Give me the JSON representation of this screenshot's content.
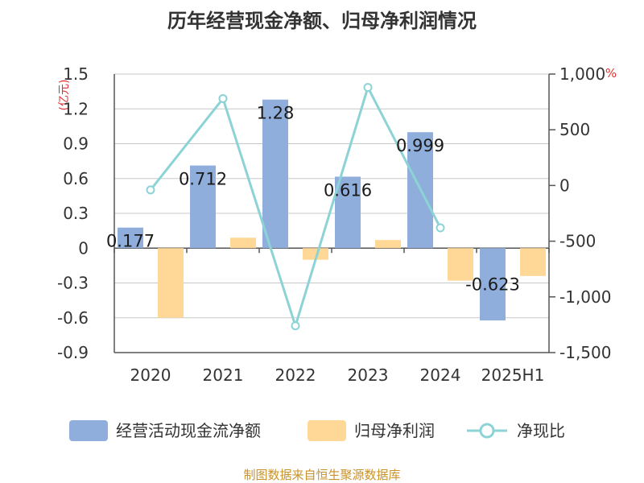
{
  "chart_data": {
    "type": "bar",
    "title": "历年经营现金净额、归母净利润情况",
    "categories": [
      "2020",
      "2021",
      "2022",
      "2023",
      "2024",
      "2025H1"
    ],
    "y_left": {
      "unit_label": "(亿元)",
      "ylim": [
        -0.9,
        1.5
      ],
      "ticks": [
        -0.9,
        -0.6,
        -0.3,
        0,
        0.3,
        0.6,
        0.9,
        1.2,
        1.5
      ],
      "tick_labels": [
        "-0.9",
        "-0.6",
        "-0.3",
        "0",
        "0.3",
        "0.6",
        "0.9",
        "1.2",
        "1.5"
      ]
    },
    "y_right": {
      "unit_label": "%",
      "ylim": [
        -1500,
        1000
      ],
      "ticks": [
        -1500,
        -1000,
        -500,
        0,
        500,
        1000
      ],
      "tick_labels": [
        "-1,500",
        "-1,000",
        "-500",
        "0",
        "500",
        "1,000"
      ]
    },
    "series": [
      {
        "name": "经营活动现金流净额",
        "type": "bar",
        "axis": "left",
        "color": "#8FAEDC",
        "values": [
          0.177,
          0.712,
          1.28,
          0.616,
          0.999,
          -0.623
        ],
        "labels": [
          "0.177",
          "0.712",
          "1.28",
          "0.616",
          "0.999",
          "-0.623"
        ]
      },
      {
        "name": "归母净利润",
        "type": "bar",
        "axis": "left",
        "color": "#FFD796",
        "values": [
          -0.6,
          0.09,
          -0.1,
          0.07,
          -0.28,
          -0.24
        ]
      },
      {
        "name": "净现比",
        "type": "line",
        "axis": "right",
        "color": "#8DD3D6",
        "values": [
          -40,
          780,
          -1260,
          880,
          -380,
          null
        ]
      }
    ],
    "grid": true,
    "legend_position": "bottom"
  },
  "source_note": "制图数据来自恒生聚源数据库"
}
